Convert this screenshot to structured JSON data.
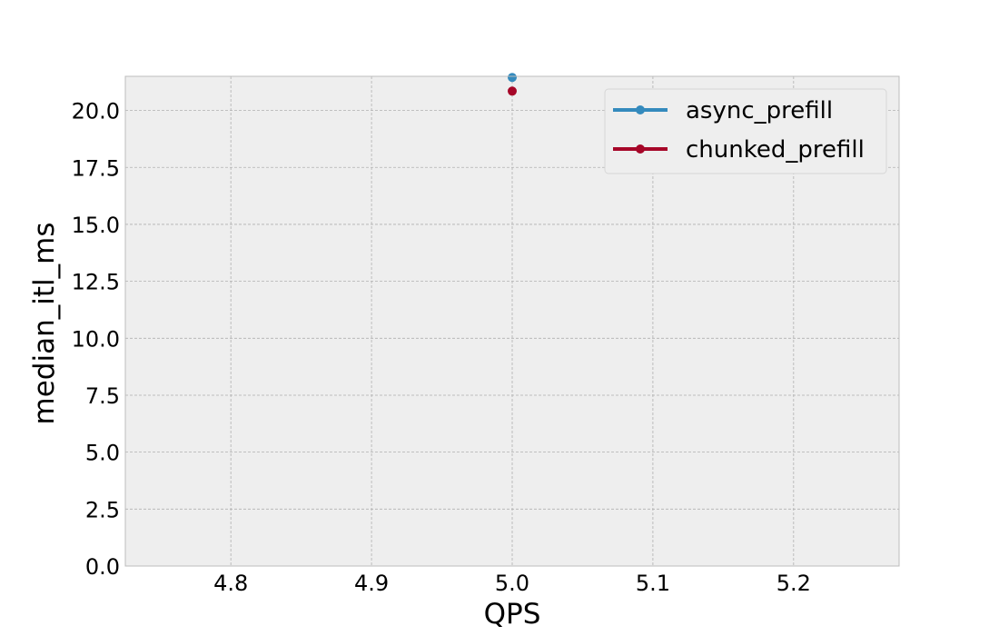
{
  "chart_data": {
    "type": "line",
    "title": "",
    "xlabel": "QPS",
    "ylabel": "median_itl_ms",
    "xlim": [
      4.725,
      5.275
    ],
    "ylim": [
      0.0,
      21.5
    ],
    "xticks": [
      4.8,
      4.9,
      5.0,
      5.1,
      5.2
    ],
    "xtick_labels": [
      "4.8",
      "4.9",
      "5.0",
      "5.1",
      "5.2"
    ],
    "yticks": [
      0.0,
      2.5,
      5.0,
      7.5,
      10.0,
      12.5,
      15.0,
      17.5,
      20.0
    ],
    "ytick_labels": [
      "0.0",
      "2.5",
      "5.0",
      "7.5",
      "10.0",
      "12.5",
      "15.0",
      "17.5",
      "20.0"
    ],
    "grid": true,
    "legend_position": "top-right",
    "background": "#eeeeee",
    "series": [
      {
        "name": "async_prefill",
        "color": "#348abd",
        "x": [
          5.0
        ],
        "y": [
          21.45
        ]
      },
      {
        "name": "chunked_prefill",
        "color": "#a60628",
        "x": [
          5.0
        ],
        "y": [
          20.85
        ]
      }
    ]
  }
}
